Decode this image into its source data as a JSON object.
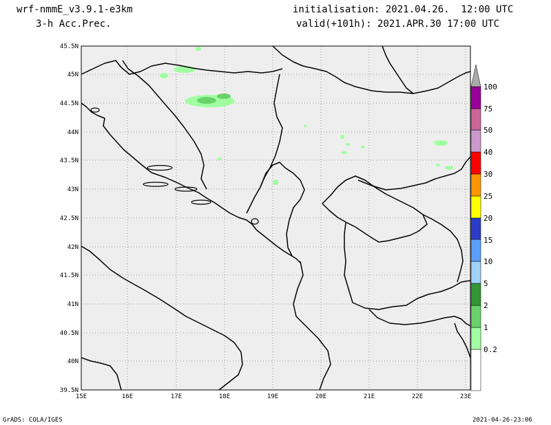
{
  "header": {
    "model": "wrf-nmmE_v3.9.1-e3km",
    "field": "3-h Acc.Prec.",
    "init": "initialisation: 2021.04.26.  12:00 UTC",
    "valid": "valid(+101h): 2021.APR.30 17:00 UTC"
  },
  "footer": {
    "left": "GrADS: COLA/IGES",
    "right": "2021-04-26-23:06"
  },
  "map": {
    "lat_labels": [
      "45.5N",
      "45N",
      "44.5N",
      "44N",
      "43.5N",
      "43N",
      "42.5N",
      "42N",
      "41.5N",
      "41N",
      "40.5N",
      "40N",
      "39.5N"
    ],
    "lon_labels": [
      "15E",
      "16E",
      "17E",
      "18E",
      "19E",
      "20E",
      "21E",
      "22E",
      "23E"
    ],
    "colors": {
      "background": "#eeeeee",
      "grid": "#999999"
    }
  },
  "legend": {
    "labels": [
      "0.2",
      "1",
      "2",
      "5",
      "10",
      "15",
      "20",
      "25",
      "30",
      "40",
      "50",
      "75",
      "100"
    ],
    "colors": [
      "#ffffff",
      "#a0ffa0",
      "#6ad26a",
      "#329632",
      "#a0d2fa",
      "#5aa0fa",
      "#2a3cc8",
      "#ffff00",
      "#ff9600",
      "#ff0000",
      "#cc99cc",
      "#cc6699",
      "#990099",
      "#aaaaaa"
    ]
  }
}
